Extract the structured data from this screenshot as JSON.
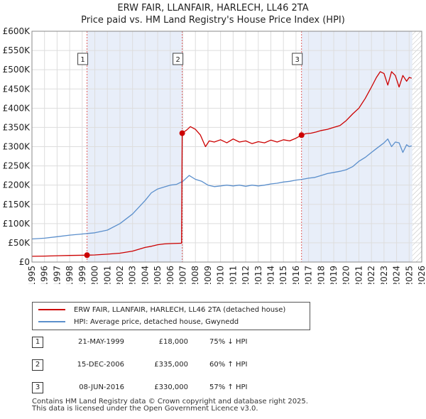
{
  "chart_data": {
    "type": "line",
    "title": "ERW FAIR, LLANFAIR, HARLECH, LL46 2TA",
    "subtitle": "Price paid vs. HM Land Registry's House Price Index (HPI)",
    "xlim": [
      1995,
      2026
    ],
    "ylim": [
      0,
      600000
    ],
    "x_ticks": [
      "1995",
      "1996",
      "1997",
      "1998",
      "1999",
      "2000",
      "2001",
      "2002",
      "2003",
      "2004",
      "2005",
      "2006",
      "2007",
      "2008",
      "2009",
      "2010",
      "2011",
      "2012",
      "2013",
      "2014",
      "2015",
      "2016",
      "2017",
      "2018",
      "2019",
      "2020",
      "2021",
      "2022",
      "2023",
      "2024",
      "2025",
      "2026"
    ],
    "y_ticks": [
      {
        "value": 0,
        "label": "£0"
      },
      {
        "value": 50000,
        "label": "£50K"
      },
      {
        "value": 100000,
        "label": "£100K"
      },
      {
        "value": 150000,
        "label": "£150K"
      },
      {
        "value": 200000,
        "label": "£200K"
      },
      {
        "value": 250000,
        "label": "£250K"
      },
      {
        "value": 300000,
        "label": "£300K"
      },
      {
        "value": 350000,
        "label": "£350K"
      },
      {
        "value": 400000,
        "label": "£400K"
      },
      {
        "value": 450000,
        "label": "£450K"
      },
      {
        "value": 500000,
        "label": "£500K"
      },
      {
        "value": 550000,
        "label": "£550K"
      },
      {
        "value": 600000,
        "label": "£600K"
      }
    ],
    "series": [
      {
        "name": "ERW FAIR, LLANFAIR, HARLECH, LL46 2TA (detached house)",
        "color": "#cc0000",
        "x": [
          1995.0,
          1996.0,
          1997.0,
          1998.0,
          1999.38,
          2000.0,
          2001.0,
          2002.0,
          2003.0,
          2004.0,
          2004.5,
          2005.0,
          2005.5,
          2006.0,
          2006.9,
          2006.95,
          2007.3,
          2007.6,
          2008.0,
          2008.4,
          2008.8,
          2009.1,
          2009.5,
          2010.0,
          2010.5,
          2011.0,
          2011.5,
          2012.0,
          2012.5,
          2013.0,
          2013.5,
          2014.0,
          2014.5,
          2015.0,
          2015.5,
          2016.0,
          2016.44,
          2016.8,
          2017.2,
          2017.6,
          2018.0,
          2018.5,
          2019.0,
          2019.5,
          2020.0,
          2020.5,
          2021.0,
          2021.5,
          2022.0,
          2022.4,
          2022.7,
          2023.0,
          2023.3,
          2023.6,
          2023.9,
          2024.2,
          2024.5,
          2024.8,
          2025.0,
          2025.2
        ],
        "y": [
          15000,
          15500,
          16500,
          17200,
          18000,
          18500,
          20500,
          23000,
          28500,
          38000,
          41000,
          45000,
          47000,
          48000,
          49000,
          335000,
          343000,
          352000,
          345000,
          330000,
          300000,
          315000,
          312000,
          318000,
          310000,
          320000,
          312000,
          315000,
          308000,
          313000,
          310000,
          317000,
          312000,
          318000,
          315000,
          322000,
          330000,
          334000,
          335000,
          338000,
          342000,
          345000,
          350000,
          355000,
          368000,
          385000,
          400000,
          425000,
          455000,
          480000,
          495000,
          490000,
          460000,
          495000,
          485000,
          455000,
          485000,
          470000,
          480000,
          478000
        ]
      },
      {
        "name": "HPI: Average price, detached house, Gwynedd",
        "color": "#5b8fcc",
        "x": [
          1995.0,
          1996.0,
          1997.0,
          1998.0,
          1999.0,
          2000.0,
          2001.0,
          2002.0,
          2003.0,
          2004.0,
          2004.5,
          2005.0,
          2005.5,
          2006.0,
          2006.5,
          2007.0,
          2007.5,
          2008.0,
          2008.5,
          2009.0,
          2009.5,
          2010.0,
          2010.5,
          2011.0,
          2011.5,
          2012.0,
          2012.5,
          2013.0,
          2013.5,
          2014.0,
          2014.5,
          2015.0,
          2015.5,
          2016.0,
          2016.5,
          2017.0,
          2017.5,
          2018.0,
          2018.5,
          2019.0,
          2019.5,
          2020.0,
          2020.5,
          2021.0,
          2021.5,
          2022.0,
          2022.4,
          2022.8,
          2023.0,
          2023.3,
          2023.6,
          2023.9,
          2024.2,
          2024.5,
          2024.8,
          2025.0,
          2025.2
        ],
        "y": [
          60000,
          62000,
          66000,
          70000,
          73000,
          76000,
          83000,
          100000,
          125000,
          160000,
          180000,
          190000,
          195000,
          200000,
          202000,
          210000,
          225000,
          215000,
          210000,
          200000,
          196000,
          198000,
          200000,
          198000,
          200000,
          197000,
          200000,
          198000,
          200000,
          203000,
          205000,
          208000,
          210000,
          213000,
          215000,
          218000,
          220000,
          225000,
          230000,
          233000,
          236000,
          240000,
          248000,
          262000,
          272000,
          285000,
          295000,
          305000,
          310000,
          320000,
          300000,
          312000,
          310000,
          285000,
          305000,
          300000,
          302000
        ]
      }
    ],
    "annotations": [
      {
        "label": "1",
        "x": 1999.38,
        "y": 18000
      },
      {
        "label": "2",
        "x": 2006.95,
        "y": 335000
      },
      {
        "label": "3",
        "x": 2016.44,
        "y": 330000
      }
    ],
    "shaded_ranges": [
      [
        1999.38,
        2006.95
      ],
      [
        2016.44,
        2025.25
      ]
    ],
    "hatched_from": 2025.25
  },
  "legend": {
    "items": [
      {
        "label": "ERW FAIR, LLANFAIR, HARLECH, LL46 2TA (detached house)",
        "color": "#cc0000"
      },
      {
        "label": "HPI: Average price, detached house, Gwynedd",
        "color": "#5b8fcc"
      }
    ]
  },
  "sales": [
    {
      "num": "1",
      "date": "21-MAY-1999",
      "price": "£18,000",
      "hpi": "75% ↓ HPI"
    },
    {
      "num": "2",
      "date": "15-DEC-2006",
      "price": "£335,000",
      "hpi": "60% ↑ HPI"
    },
    {
      "num": "3",
      "date": "08-JUN-2016",
      "price": "£330,000",
      "hpi": "57% ↑ HPI"
    }
  ],
  "footer": {
    "line1": "Contains HM Land Registry data © Crown copyright and database right 2025.",
    "line2": "This data is licensed under the Open Government Licence v3.0."
  }
}
